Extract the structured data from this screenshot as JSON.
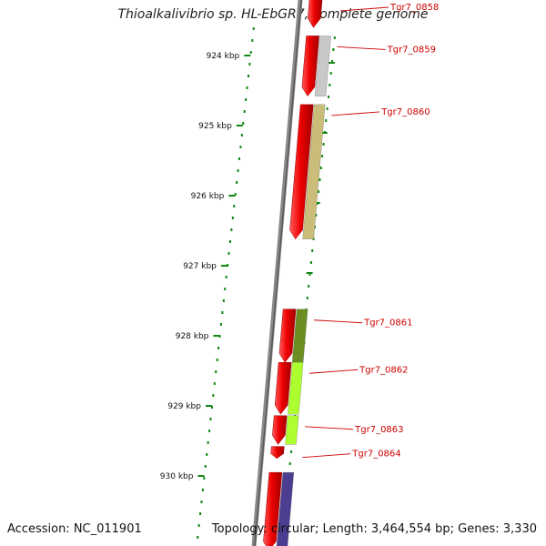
{
  "title": "Thioalkalivibrio sp. HL-EbGR7, complete genome",
  "accession": "Accession: NC_011901",
  "topology": "Topology: circular; Length: 3,464,554 bp; Genes: 3,330",
  "ruler": {
    "unit": "kbp",
    "ticks": [
      "924 kbp",
      "925 kbp",
      "926 kbp",
      "927 kbp",
      "928 kbp",
      "929 kbp",
      "930 kbp"
    ]
  },
  "genes": [
    {
      "label": "Tgr7_0858",
      "start": 923.1,
      "end": 923.6,
      "strand": "-",
      "cog_color": "#b5b5b5",
      "cog_visible": false
    },
    {
      "label": "Tgr7_0859",
      "start": 923.72,
      "end": 924.58,
      "strand": "-",
      "cog_color": "#c8c8c8",
      "cog_visible": true
    },
    {
      "label": "Tgr7_0860",
      "start": 924.7,
      "end": 926.62,
      "strand": "-",
      "cog_color": "#c9bd79",
      "cog_visible": true
    },
    {
      "label": "Tgr7_0861",
      "start": 927.62,
      "end": 928.38,
      "strand": "-",
      "cog_color": "#6b8e23",
      "cog_visible": true
    },
    {
      "label": "Tgr7_0862",
      "start": 928.38,
      "end": 929.12,
      "strand": "-",
      "cog_color": "#adff2f",
      "cog_visible": true
    },
    {
      "label": "Tgr7_0863",
      "start": 929.14,
      "end": 929.55,
      "strand": "-",
      "cog_color": "#adff2f",
      "cog_visible": true
    },
    {
      "label": "Tgr7_0864",
      "start": 929.58,
      "end": 929.75,
      "strand": "-",
      "cog_color": "#adff2f",
      "cog_visible": false
    },
    {
      "label": "",
      "start": 929.95,
      "end": 931.1,
      "strand": "-",
      "cog_color": "#4b3d8f",
      "cog_visible": true
    }
  ],
  "colors": {
    "cds": "#ee0000",
    "backbone": "#777777",
    "tick": "#118811",
    "label": "#cc0000"
  }
}
